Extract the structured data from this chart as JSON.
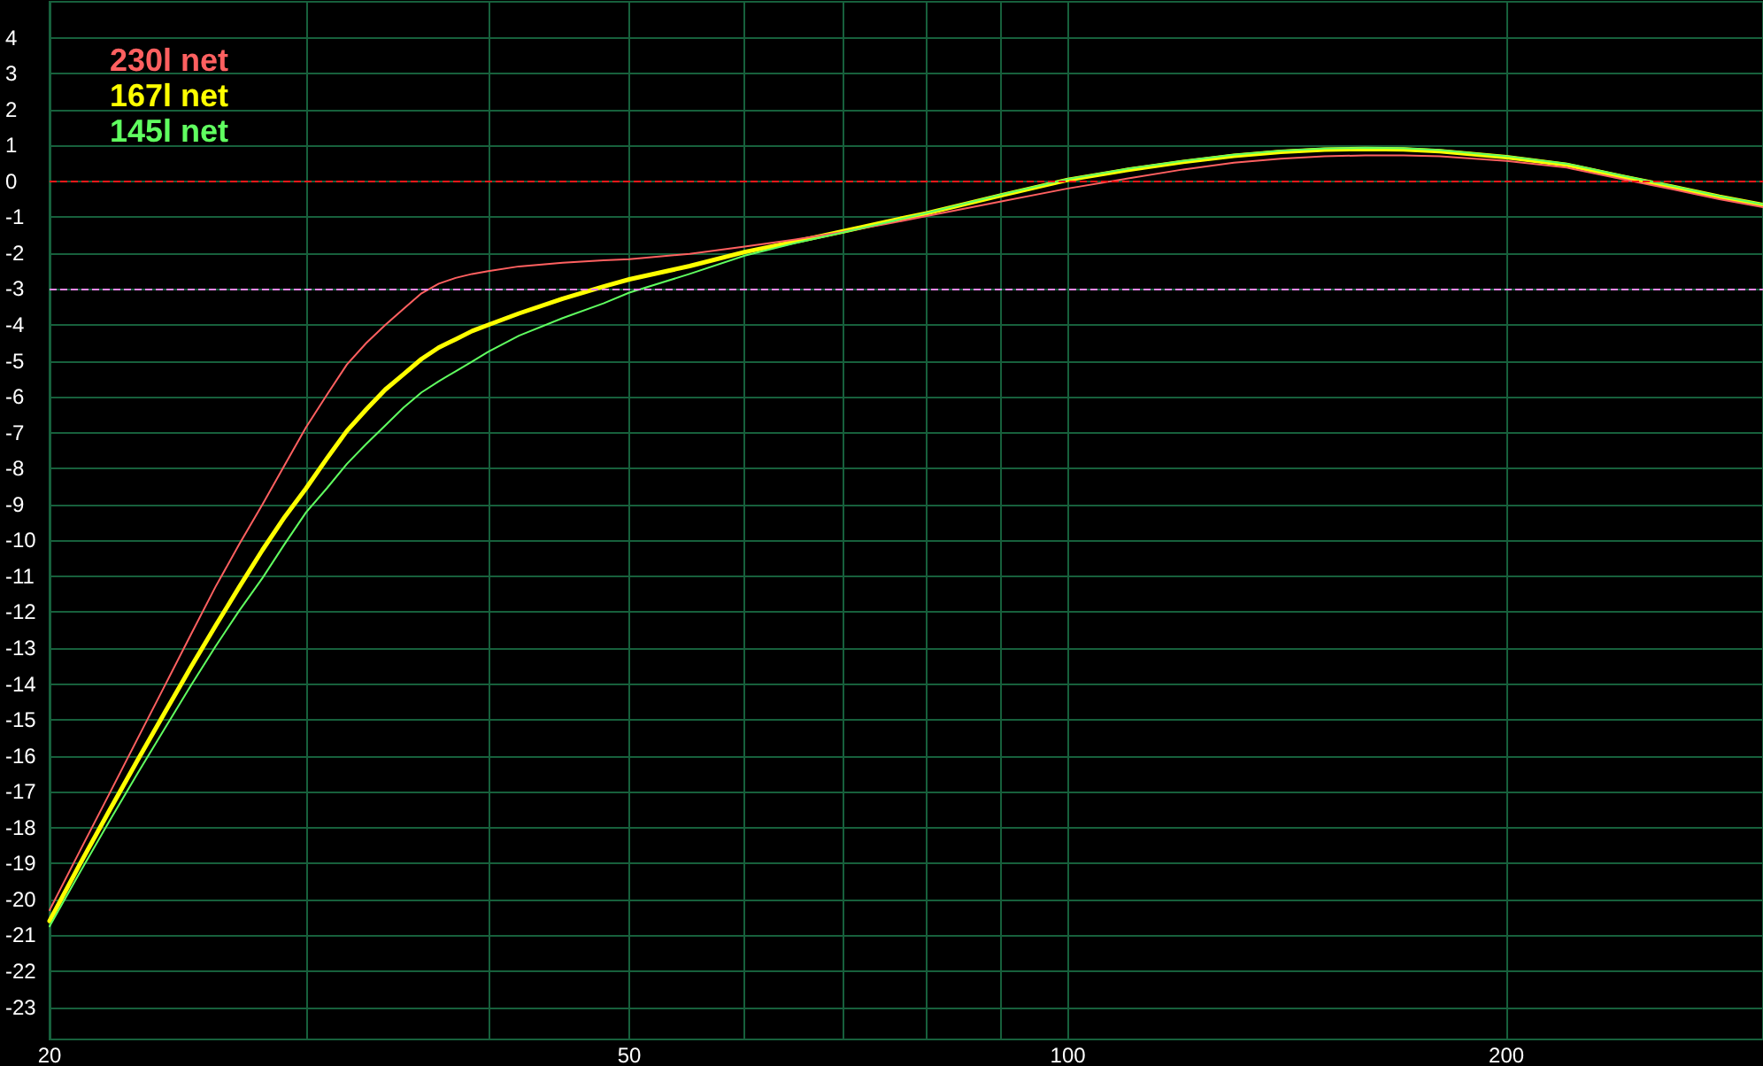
{
  "chart_data": {
    "type": "line",
    "x": [
      20,
      21,
      22,
      23,
      24,
      25,
      26,
      27,
      28,
      29,
      30,
      31,
      32,
      33,
      34,
      35,
      36,
      37,
      38,
      39,
      40,
      42,
      45,
      48,
      50,
      55,
      60,
      65,
      70,
      75,
      80,
      90,
      100,
      110,
      120,
      130,
      140,
      150,
      160,
      170,
      180,
      200,
      220,
      240,
      260,
      280,
      300
    ],
    "series": [
      {
        "name": "230l net",
        "color": "#ff6060",
        "values": [
          -20.3,
          -18.62,
          -17.03,
          -15.5,
          -14.04,
          -12.63,
          -11.29,
          -10.1,
          -9.0,
          -7.9,
          -6.85,
          -5.95,
          -5.1,
          -4.5,
          -4.0,
          -3.55,
          -3.12,
          -2.85,
          -2.69,
          -2.58,
          -2.5,
          -2.37,
          -2.27,
          -2.2,
          -2.17,
          -2.02,
          -1.82,
          -1.62,
          -1.41,
          -1.19,
          -0.97,
          -0.56,
          -0.2,
          0.08,
          0.33,
          0.52,
          0.63,
          0.7,
          0.72,
          0.72,
          0.7,
          0.57,
          0.38,
          0.06,
          -0.22,
          -0.5,
          -0.72
        ]
      },
      {
        "name": "167l net",
        "color": "#ffff00",
        "values": [
          -20.6,
          -18.99,
          -17.5,
          -16.1,
          -14.79,
          -13.54,
          -12.38,
          -11.29,
          -10.27,
          -9.35,
          -8.55,
          -7.72,
          -6.95,
          -6.35,
          -5.8,
          -5.37,
          -4.95,
          -4.63,
          -4.4,
          -4.17,
          -4.0,
          -3.68,
          -3.27,
          -2.93,
          -2.73,
          -2.36,
          -1.97,
          -1.68,
          -1.4,
          -1.13,
          -0.89,
          -0.39,
          0.04,
          0.32,
          0.54,
          0.71,
          0.82,
          0.88,
          0.9,
          0.89,
          0.84,
          0.67,
          0.46,
          0.13,
          -0.15,
          -0.43,
          -0.66
        ]
      },
      {
        "name": "145l net",
        "color": "#60ff60",
        "values": [
          -20.75,
          -19.22,
          -17.8,
          -16.47,
          -15.23,
          -14.05,
          -12.95,
          -11.95,
          -11.05,
          -10.1,
          -9.22,
          -8.55,
          -7.87,
          -7.31,
          -6.8,
          -6.3,
          -5.88,
          -5.57,
          -5.29,
          -5.02,
          -4.75,
          -4.3,
          -3.81,
          -3.4,
          -3.1,
          -2.58,
          -2.07,
          -1.72,
          -1.43,
          -1.15,
          -0.88,
          -0.37,
          0.06,
          0.35,
          0.57,
          0.74,
          0.85,
          0.91,
          0.93,
          0.92,
          0.87,
          0.7,
          0.49,
          0.16,
          -0.13,
          -0.41,
          -0.64
        ]
      }
    ],
    "xlim": [
      20,
      300
    ],
    "xticks": [
      20,
      {
        "value": 30,
        "label": null
      },
      {
        "value": 40,
        "label": null
      },
      50,
      {
        "value": 60,
        "label": null
      },
      {
        "value": 70,
        "label": null
      },
      {
        "value": 80,
        "label": null
      },
      {
        "value": 90,
        "label": null
      },
      100,
      200
    ],
    "ylim": [
      -23.9,
      5
    ],
    "yticks": [
      -23,
      -22,
      -21,
      -20,
      -19,
      -18,
      -17,
      -16,
      -15,
      -14,
      -13,
      -12,
      -11,
      -10,
      -9,
      -8,
      -7,
      -6,
      -5,
      -4,
      -3,
      -2,
      -1,
      0,
      1,
      2,
      3,
      4
    ],
    "log": "x",
    "grid": true,
    "legend": "top left",
    "ref_lines": [
      {
        "axis": "y",
        "value": 0,
        "color": "#ff1a1a",
        "line_style": "dashed"
      },
      {
        "axis": "y",
        "value": -3,
        "color": "#ee88ee",
        "line_style": "dashed"
      }
    ]
  }
}
